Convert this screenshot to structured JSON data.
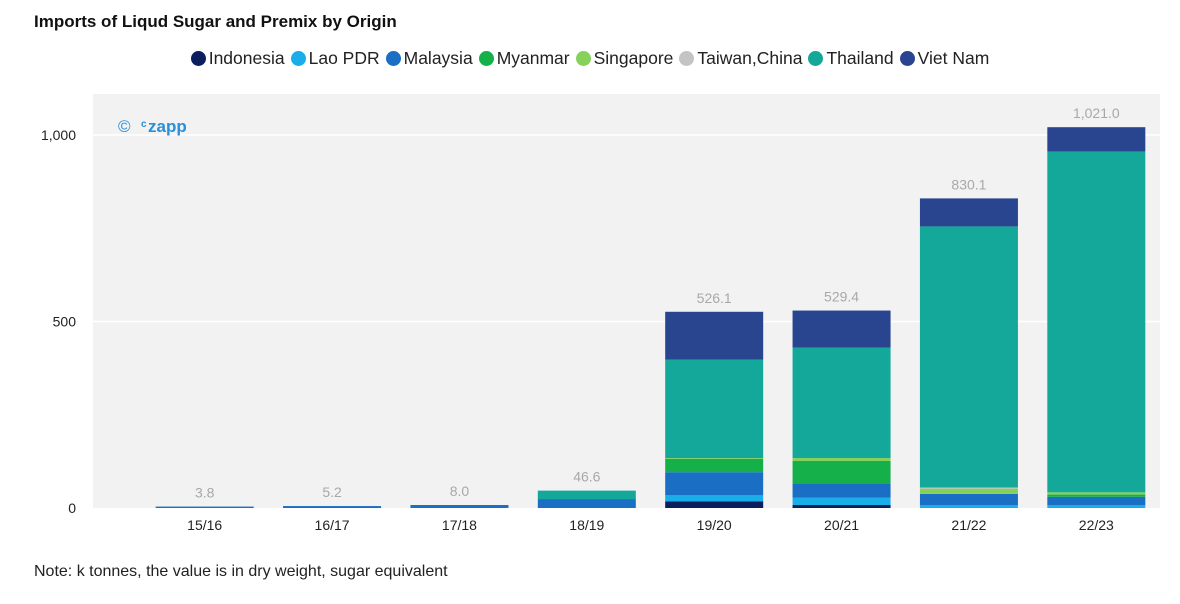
{
  "title": "Imports of Liqud Sugar and Premix by Origin",
  "note": "Note: k tonnes, the value is in dry weight, sugar equivalent",
  "watermark": {
    "symbol": "©",
    "brand_prefix": "c",
    "brand_name": "zapp",
    "color": "#2a8fd6"
  },
  "chart_data": {
    "type": "bar",
    "stacked": true,
    "categories": [
      "15/16",
      "16/17",
      "17/18",
      "18/19",
      "19/20",
      "20/21",
      "21/22",
      "22/23"
    ],
    "totals": [
      "3.8",
      "5.2",
      "8.0",
      "46.6",
      "526.1",
      "529.4",
      "830.1",
      "1,021.0"
    ],
    "y_ticks": [
      {
        "value": 0,
        "label": "0"
      },
      {
        "value": 500,
        "label": "500"
      },
      {
        "value": 1000,
        "label": "1,000"
      }
    ],
    "ylim": [
      0,
      1110
    ],
    "grid": true,
    "legend_position": "top-center",
    "series": [
      {
        "name": "Indonesia",
        "color": "#0b1f5c",
        "values": [
          0,
          0,
          0,
          0,
          18,
          8,
          0,
          0
        ]
      },
      {
        "name": "Lao PDR",
        "color": "#1aaee8",
        "values": [
          0,
          0,
          0,
          0,
          16,
          20,
          8,
          8
        ]
      },
      {
        "name": "Malaysia",
        "color": "#1a6fc4",
        "values": [
          3.8,
          5.2,
          8.0,
          24,
          62,
          38,
          30,
          22
        ]
      },
      {
        "name": "Myanmar",
        "color": "#16b04a",
        "values": [
          0,
          0,
          0,
          0,
          36,
          60,
          0,
          6
        ]
      },
      {
        "name": "Singapore",
        "color": "#86d15a",
        "values": [
          0,
          0,
          0,
          0,
          2,
          8,
          14,
          6
        ]
      },
      {
        "name": "Taiwan,China",
        "color": "#c4c4c4",
        "values": [
          0,
          0,
          0,
          0,
          0,
          0,
          3,
          0
        ]
      },
      {
        "name": "Thailand",
        "color": "#14a89a",
        "values": [
          0,
          0,
          0,
          22.6,
          264,
          296,
          700,
          914
        ]
      },
      {
        "name": "Viet Nam",
        "color": "#2a4590",
        "values": [
          0,
          0,
          0,
          0,
          128.1,
          99.4,
          75.1,
          65
        ]
      }
    ]
  }
}
